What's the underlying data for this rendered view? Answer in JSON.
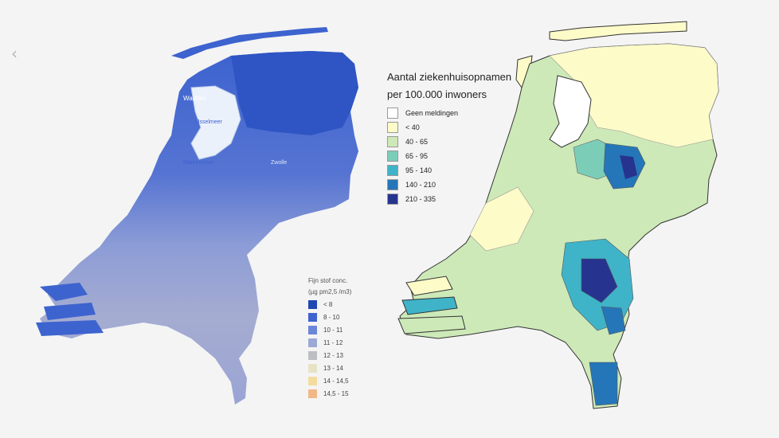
{
  "nav": {
    "prev_glyph": "‹"
  },
  "left_legend": {
    "title_line1": "Fijn stof conc.",
    "title_line2": "(µg pm2,5 /m3)",
    "items": [
      {
        "label": "< 8",
        "color": "#1f48b0"
      },
      {
        "label": "8 - 10",
        "color": "#3d63cf"
      },
      {
        "label": "10 - 11",
        "color": "#6b86d8"
      },
      {
        "label": "11 - 12",
        "color": "#9ca9d4"
      },
      {
        "label": "12 - 13",
        "color": "#bdbdc4"
      },
      {
        "label": "13 - 14",
        "color": "#e6e3c6"
      },
      {
        "label": "14 - 14,5",
        "color": "#f4dc9e"
      },
      {
        "label": "14,5 - 15",
        "color": "#f0b886"
      }
    ]
  },
  "right_legend": {
    "title_line1": "Aantal ziekenhuisopnamen",
    "title_line2": "per 100.000 inwoners",
    "items": [
      {
        "label": "Geen meldingen",
        "color": "#ffffff"
      },
      {
        "label": "< 40",
        "color": "#fdfbc8"
      },
      {
        "label": "40 - 65",
        "color": "#cde9b8"
      },
      {
        "label": "65 - 95",
        "color": "#7ccdb8"
      },
      {
        "label": "95 - 140",
        "color": "#3fb3c8"
      },
      {
        "label": "140 - 210",
        "color": "#2576b8"
      },
      {
        "label": "210 - 335",
        "color": "#26348f"
      }
    ]
  },
  "left_map_labels": {
    "wadden": "Wadden",
    "ijsselmeer": "IJsselmeer",
    "markermeer": "Markermeer",
    "zwolle": "Zwolle"
  }
}
